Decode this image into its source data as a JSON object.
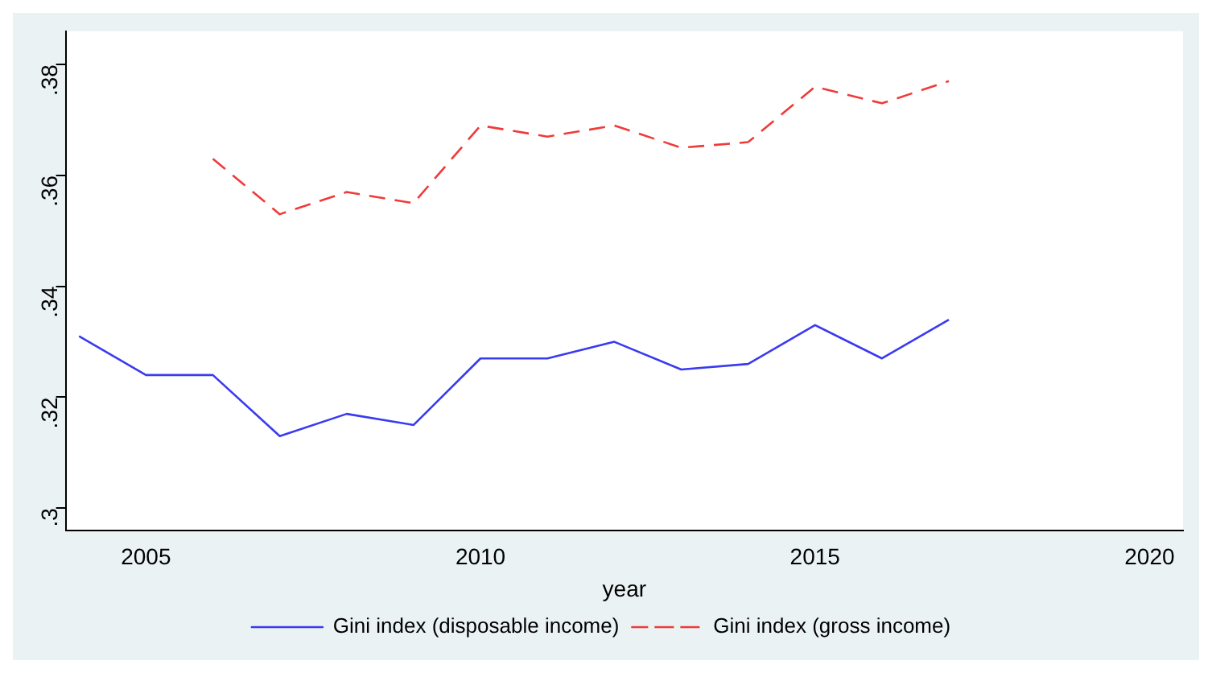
{
  "chart_data": {
    "type": "line",
    "xlabel": "year",
    "xlim": [
      2003.8,
      2020.5
    ],
    "xticks": [
      2005,
      2010,
      2015,
      2020
    ],
    "ylim": [
      0.296,
      0.386
    ],
    "yticks": [
      {
        "value": 0.3,
        "label": ".3"
      },
      {
        "value": 0.32,
        "label": ".32"
      },
      {
        "value": 0.34,
        "label": ".34"
      },
      {
        "value": 0.36,
        "label": ".36"
      },
      {
        "value": 0.38,
        "label": ".38"
      }
    ],
    "grid": false,
    "legend": "bottom",
    "marker": "none",
    "series": [
      {
        "name": "Gini index (disposable income)",
        "color": "#3a3af0",
        "line_style": "solid",
        "x": [
          2004,
          2005,
          2006,
          2007,
          2008,
          2009,
          2010,
          2011,
          2012,
          2013,
          2014,
          2015,
          2016,
          2017
        ],
        "values": [
          0.331,
          0.324,
          0.324,
          0.313,
          0.317,
          0.315,
          0.327,
          0.327,
          0.33,
          0.325,
          0.326,
          0.333,
          0.327,
          0.334
        ]
      },
      {
        "name": "Gini index (gross income)",
        "color": "#f03a3a",
        "line_style": "dashed",
        "x": [
          2006,
          2007,
          2008,
          2009,
          2010,
          2011,
          2012,
          2013,
          2014,
          2015,
          2016,
          2017
        ],
        "values": [
          0.363,
          0.353,
          0.357,
          0.355,
          0.369,
          0.367,
          0.369,
          0.365,
          0.366,
          0.376,
          0.373,
          0.377
        ]
      }
    ]
  }
}
